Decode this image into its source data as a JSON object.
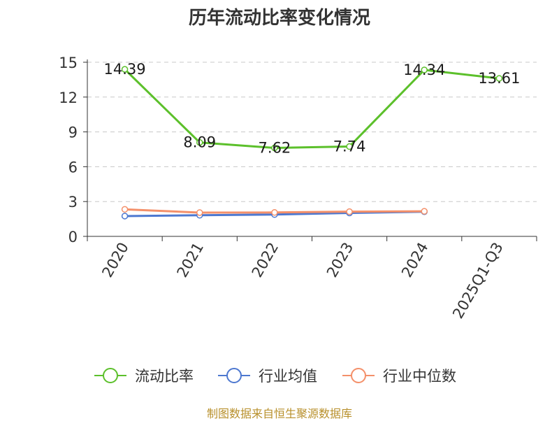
{
  "chart_data": {
    "type": "line",
    "title": "历年流动比率变化情况",
    "categories": [
      "2020",
      "2021",
      "2022",
      "2023",
      "2024",
      "2025Q1-Q3"
    ],
    "ylim": [
      0,
      15
    ],
    "yticks": [
      0,
      3,
      6,
      9,
      12,
      15
    ],
    "grid": true,
    "legend_position": "bottom",
    "series": [
      {
        "name": "流动比率",
        "color": "#5cc02b",
        "values": [
          14.39,
          8.09,
          7.62,
          7.74,
          14.34,
          13.61
        ],
        "labels": [
          "14.39",
          "8.09",
          "7.62",
          "7.74",
          "14.34",
          "13.61"
        ]
      },
      {
        "name": "行业均值",
        "color": "#4d78d0",
        "values": [
          1.75,
          1.82,
          1.88,
          2.02,
          2.12,
          null
        ]
      },
      {
        "name": "行业中位数",
        "color": "#f4906a",
        "values": [
          2.33,
          2.05,
          2.06,
          2.13,
          2.16,
          null
        ]
      }
    ]
  },
  "source": "制图数据来自恒生聚源数据库"
}
